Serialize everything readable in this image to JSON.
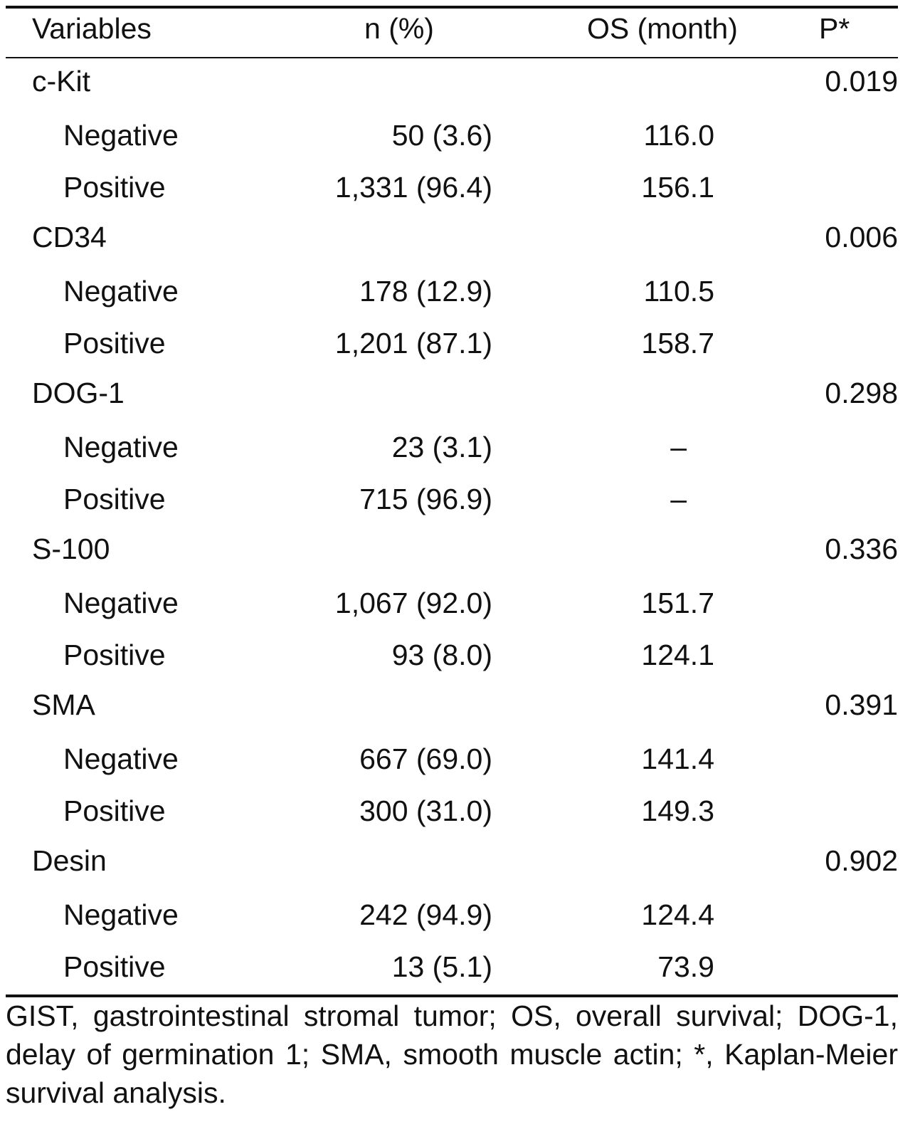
{
  "table": {
    "headers": {
      "variables": "Variables",
      "n_pct": "n (%)",
      "os": "OS (month)",
      "p": "P*"
    },
    "groups": [
      {
        "name": "c-Kit",
        "p": "0.019",
        "rows": [
          {
            "label": "Negative",
            "n": "50 (3.6)",
            "os": "116.0"
          },
          {
            "label": "Positive",
            "n": "1,331 (96.4)",
            "os": "156.1"
          }
        ]
      },
      {
        "name": "CD34",
        "p": "0.006",
        "rows": [
          {
            "label": "Negative",
            "n": "178 (12.9)",
            "os": "110.5"
          },
          {
            "label": "Positive",
            "n": "1,201 (87.1)",
            "os": "158.7"
          }
        ]
      },
      {
        "name": "DOG-1",
        "p": "0.298",
        "rows": [
          {
            "label": "Negative",
            "n": "23 (3.1)",
            "os": "–"
          },
          {
            "label": "Positive",
            "n": "715 (96.9)",
            "os": "–"
          }
        ]
      },
      {
        "name": "S-100",
        "p": "0.336",
        "rows": [
          {
            "label": "Negative",
            "n": "1,067 (92.0)",
            "os": "151.7"
          },
          {
            "label": "Positive",
            "n": "93 (8.0)",
            "os": "124.1"
          }
        ]
      },
      {
        "name": "SMA",
        "p": "0.391",
        "rows": [
          {
            "label": "Negative",
            "n": "667 (69.0)",
            "os": "141.4"
          },
          {
            "label": "Positive",
            "n": "300 (31.0)",
            "os": "149.3"
          }
        ]
      },
      {
        "name": "Desin",
        "p": "0.902",
        "rows": [
          {
            "label": "Negative",
            "n": "242 (94.9)",
            "os": "124.4"
          },
          {
            "label": "Positive",
            "n": "13 (5.1)",
            "os": "73.9"
          }
        ]
      }
    ]
  },
  "footnote": "GIST, gastrointestinal stromal tumor; OS, overall survival; DOG-1, delay of germination 1; SMA, smooth muscle actin; *, Kaplan-Meier survival analysis."
}
